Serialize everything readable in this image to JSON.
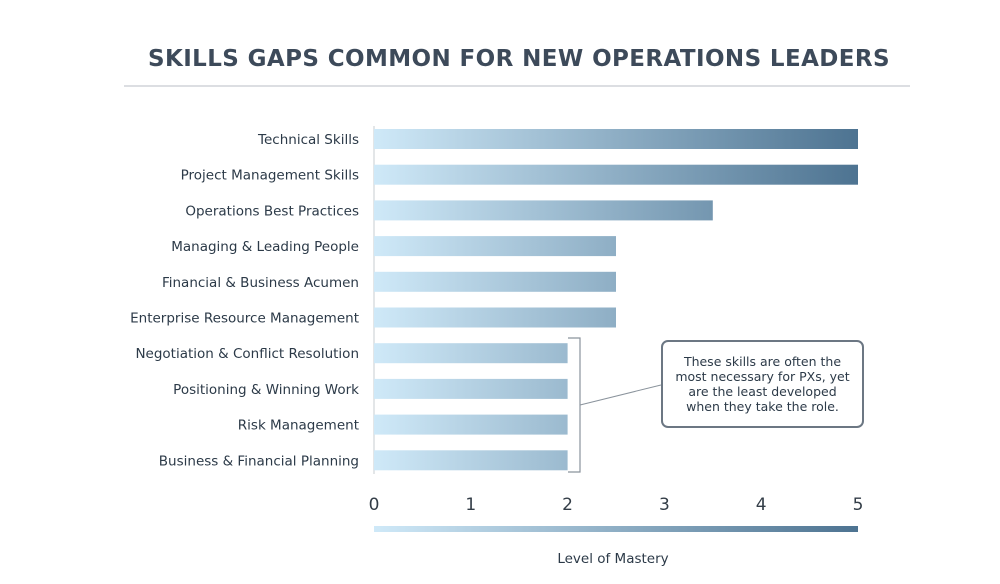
{
  "chart_data": {
    "type": "bar",
    "orientation": "horizontal",
    "title": "SKILLS GAPS COMMON FOR NEW OPERATIONS LEADERS",
    "categories": [
      "Technical Skills",
      "Project Management Skills",
      "Operations Best Practices",
      "Managing & Leading People",
      "Financial & Business Acumen",
      "Enterprise Resource Management",
      "Negotiation & Conflict Resolution",
      "Positioning & Winning Work",
      "Risk Management",
      "Business & Financial Planning"
    ],
    "values": [
      5,
      5,
      3.5,
      2.5,
      2.5,
      2.5,
      2,
      2,
      2,
      2
    ],
    "xlim": [
      0,
      5
    ],
    "xticks": [
      "0",
      "1",
      "2",
      "3",
      "4",
      "5"
    ],
    "xlabel": "Level of Mastery",
    "ylabel": "",
    "grid": false,
    "colors": {
      "gradient_start": "#cfe9f8",
      "gradient_end": "#4d7391",
      "title": "#3d4a5a",
      "text": "#2c3a48"
    },
    "annotation": {
      "text": "These skills are often the most necessary for PXs, yet are the least developed when they take the role.",
      "applies_to": [
        "Negotiation & Conflict Resolution",
        "Positioning & Winning Work",
        "Risk Management",
        "Business & Financial Planning"
      ]
    }
  }
}
